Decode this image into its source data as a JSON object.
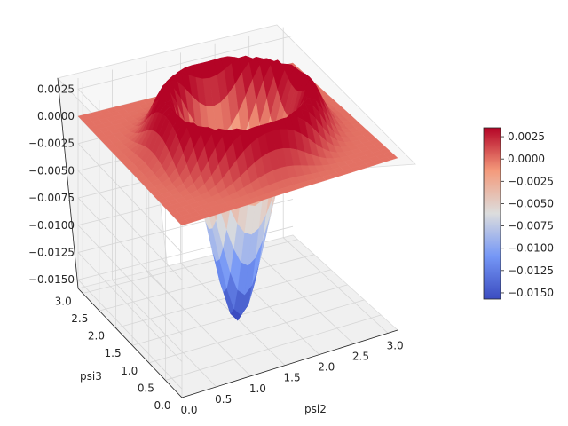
{
  "chart_data": {
    "type": "surface3d",
    "title": "",
    "xlabel": "psi2",
    "ylabel": "psi3",
    "zlabel": "",
    "x_ticks": [
      "0.0",
      "0.5",
      "1.0",
      "1.5",
      "2.0",
      "2.5",
      "3.0"
    ],
    "y_ticks": [
      "0.0",
      "0.5",
      "1.0",
      "1.5",
      "2.0",
      "2.5",
      "3.0"
    ],
    "z_ticks": [
      "−0.0150",
      "−0.0125",
      "−0.0100",
      "−0.0075",
      "−0.0050",
      "−0.0025",
      "0.0000",
      "0.0025"
    ],
    "xlim": [
      0,
      3.14
    ],
    "ylim": [
      0,
      3.14
    ],
    "zlim": [
      -0.0158,
      0.0035
    ],
    "surface_min": -0.0157,
    "surface_max": 0.0035,
    "surface_min_location": [
      1.57,
      1.57
    ],
    "colormap": "coolwarm",
    "grid": true,
    "colorbar": {
      "position": "right",
      "ticks": [
        "0.0025",
        "0.0000",
        "−0.0025",
        "−0.0050",
        "−0.0075",
        "−0.0100",
        "−0.0125",
        "−0.0150"
      ],
      "range": [
        -0.0157,
        0.0035
      ]
    }
  }
}
